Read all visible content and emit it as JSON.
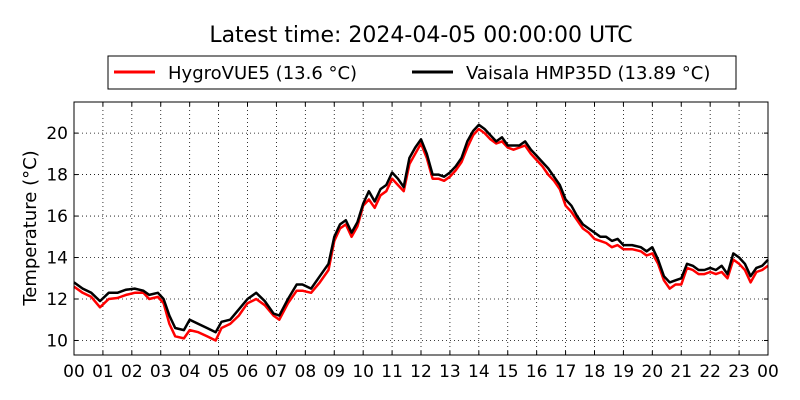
{
  "chart_data": {
    "type": "line",
    "title": "Latest time: 2024-04-05 00:00:00 UTC",
    "xlabel": "",
    "ylabel": "Temperature (°C)",
    "xlim": [
      0,
      24
    ],
    "ylim": [
      9.3,
      21.5
    ],
    "x_ticks": [
      "00",
      "01",
      "02",
      "03",
      "04",
      "05",
      "06",
      "07",
      "08",
      "09",
      "10",
      "11",
      "12",
      "13",
      "14",
      "15",
      "16",
      "17",
      "18",
      "19",
      "20",
      "21",
      "22",
      "23",
      "00"
    ],
    "y_ticks": [
      10,
      12,
      14,
      16,
      18,
      20
    ],
    "grid": true,
    "legend_position": "top",
    "series": [
      {
        "name": "HygroVUE5 (13.6 °C)",
        "color": "#ff0000",
        "points": [
          [
            0,
            12.6
          ],
          [
            0.3,
            12.3
          ],
          [
            0.6,
            12.1
          ],
          [
            0.9,
            11.6
          ],
          [
            1.2,
            12.0
          ],
          [
            1.5,
            12.05
          ],
          [
            1.8,
            12.2
          ],
          [
            2.1,
            12.3
          ],
          [
            2.4,
            12.3
          ],
          [
            2.6,
            12.0
          ],
          [
            2.9,
            12.1
          ],
          [
            3.1,
            11.8
          ],
          [
            3.3,
            10.8
          ],
          [
            3.5,
            10.2
          ],
          [
            3.8,
            10.1
          ],
          [
            4.0,
            10.5
          ],
          [
            4.3,
            10.4
          ],
          [
            4.6,
            10.2
          ],
          [
            4.9,
            10.0
          ],
          [
            5.1,
            10.6
          ],
          [
            5.4,
            10.8
          ],
          [
            5.7,
            11.2
          ],
          [
            6.0,
            11.8
          ],
          [
            6.3,
            12.0
          ],
          [
            6.6,
            11.7
          ],
          [
            6.9,
            11.2
          ],
          [
            7.1,
            11.0
          ],
          [
            7.4,
            11.8
          ],
          [
            7.7,
            12.4
          ],
          [
            7.9,
            12.4
          ],
          [
            8.2,
            12.3
          ],
          [
            8.5,
            12.8
          ],
          [
            8.8,
            13.4
          ],
          [
            9.0,
            14.8
          ],
          [
            9.2,
            15.4
          ],
          [
            9.4,
            15.6
          ],
          [
            9.6,
            15.0
          ],
          [
            9.8,
            15.5
          ],
          [
            10.0,
            16.5
          ],
          [
            10.2,
            16.8
          ],
          [
            10.4,
            16.4
          ],
          [
            10.6,
            17.0
          ],
          [
            10.8,
            17.2
          ],
          [
            11.0,
            17.8
          ],
          [
            11.2,
            17.5
          ],
          [
            11.4,
            17.2
          ],
          [
            11.6,
            18.5
          ],
          [
            11.8,
            19.0
          ],
          [
            12.0,
            19.5
          ],
          [
            12.2,
            18.8
          ],
          [
            12.4,
            17.8
          ],
          [
            12.6,
            17.8
          ],
          [
            12.8,
            17.7
          ],
          [
            13.0,
            17.9
          ],
          [
            13.2,
            18.2
          ],
          [
            13.4,
            18.6
          ],
          [
            13.6,
            19.3
          ],
          [
            13.8,
            19.9
          ],
          [
            14.0,
            20.2
          ],
          [
            14.2,
            20.0
          ],
          [
            14.4,
            19.7
          ],
          [
            14.6,
            19.5
          ],
          [
            14.8,
            19.6
          ],
          [
            15.0,
            19.3
          ],
          [
            15.2,
            19.2
          ],
          [
            15.4,
            19.3
          ],
          [
            15.6,
            19.4
          ],
          [
            15.8,
            19.0
          ],
          [
            16.0,
            18.7
          ],
          [
            16.2,
            18.4
          ],
          [
            16.4,
            18.0
          ],
          [
            16.6,
            17.7
          ],
          [
            16.8,
            17.3
          ],
          [
            17.0,
            16.5
          ],
          [
            17.2,
            16.2
          ],
          [
            17.4,
            15.8
          ],
          [
            17.6,
            15.4
          ],
          [
            17.8,
            15.2
          ],
          [
            18.0,
            14.9
          ],
          [
            18.2,
            14.8
          ],
          [
            18.4,
            14.7
          ],
          [
            18.6,
            14.5
          ],
          [
            18.8,
            14.6
          ],
          [
            19.0,
            14.4
          ],
          [
            19.3,
            14.4
          ],
          [
            19.6,
            14.3
          ],
          [
            19.8,
            14.1
          ],
          [
            20.0,
            14.2
          ],
          [
            20.2,
            13.7
          ],
          [
            20.4,
            12.9
          ],
          [
            20.6,
            12.5
          ],
          [
            20.8,
            12.7
          ],
          [
            21.0,
            12.7
          ],
          [
            21.2,
            13.5
          ],
          [
            21.4,
            13.4
          ],
          [
            21.6,
            13.2
          ],
          [
            21.8,
            13.2
          ],
          [
            22.0,
            13.3
          ],
          [
            22.2,
            13.2
          ],
          [
            22.4,
            13.3
          ],
          [
            22.6,
            13.0
          ],
          [
            22.8,
            13.9
          ],
          [
            23.0,
            13.7
          ],
          [
            23.2,
            13.4
          ],
          [
            23.4,
            12.8
          ],
          [
            23.6,
            13.3
          ],
          [
            23.8,
            13.4
          ],
          [
            24.0,
            13.6
          ]
        ]
      },
      {
        "name": "Vaisala HMP35D (13.89 °C)",
        "color": "#000000",
        "points": [
          [
            0,
            12.8
          ],
          [
            0.3,
            12.5
          ],
          [
            0.6,
            12.3
          ],
          [
            0.9,
            11.9
          ],
          [
            1.2,
            12.3
          ],
          [
            1.5,
            12.3
          ],
          [
            1.8,
            12.45
          ],
          [
            2.1,
            12.5
          ],
          [
            2.4,
            12.4
          ],
          [
            2.6,
            12.2
          ],
          [
            2.9,
            12.3
          ],
          [
            3.1,
            12.0
          ],
          [
            3.3,
            11.2
          ],
          [
            3.5,
            10.6
          ],
          [
            3.8,
            10.5
          ],
          [
            4.0,
            11.0
          ],
          [
            4.3,
            10.8
          ],
          [
            4.6,
            10.6
          ],
          [
            4.9,
            10.4
          ],
          [
            5.1,
            10.9
          ],
          [
            5.4,
            11.0
          ],
          [
            5.7,
            11.5
          ],
          [
            6.0,
            12.0
          ],
          [
            6.3,
            12.3
          ],
          [
            6.6,
            11.9
          ],
          [
            6.9,
            11.3
          ],
          [
            7.1,
            11.2
          ],
          [
            7.4,
            12.0
          ],
          [
            7.7,
            12.7
          ],
          [
            7.9,
            12.7
          ],
          [
            8.2,
            12.5
          ],
          [
            8.5,
            13.1
          ],
          [
            8.8,
            13.7
          ],
          [
            9.0,
            15.0
          ],
          [
            9.2,
            15.6
          ],
          [
            9.4,
            15.8
          ],
          [
            9.6,
            15.2
          ],
          [
            9.8,
            15.7
          ],
          [
            10.0,
            16.6
          ],
          [
            10.2,
            17.2
          ],
          [
            10.4,
            16.7
          ],
          [
            10.6,
            17.3
          ],
          [
            10.8,
            17.5
          ],
          [
            11.0,
            18.1
          ],
          [
            11.2,
            17.8
          ],
          [
            11.4,
            17.4
          ],
          [
            11.6,
            18.8
          ],
          [
            11.8,
            19.3
          ],
          [
            12.0,
            19.7
          ],
          [
            12.2,
            19.0
          ],
          [
            12.4,
            18.0
          ],
          [
            12.6,
            18.0
          ],
          [
            12.8,
            17.9
          ],
          [
            13.0,
            18.1
          ],
          [
            13.2,
            18.4
          ],
          [
            13.4,
            18.8
          ],
          [
            13.6,
            19.6
          ],
          [
            13.8,
            20.1
          ],
          [
            14.0,
            20.4
          ],
          [
            14.2,
            20.2
          ],
          [
            14.4,
            19.9
          ],
          [
            14.6,
            19.6
          ],
          [
            14.8,
            19.8
          ],
          [
            15.0,
            19.4
          ],
          [
            15.2,
            19.4
          ],
          [
            15.4,
            19.4
          ],
          [
            15.6,
            19.6
          ],
          [
            15.8,
            19.2
          ],
          [
            16.0,
            18.9
          ],
          [
            16.2,
            18.6
          ],
          [
            16.4,
            18.3
          ],
          [
            16.6,
            17.9
          ],
          [
            16.8,
            17.5
          ],
          [
            17.0,
            16.8
          ],
          [
            17.2,
            16.5
          ],
          [
            17.4,
            16.0
          ],
          [
            17.6,
            15.6
          ],
          [
            17.8,
            15.4
          ],
          [
            18.0,
            15.2
          ],
          [
            18.2,
            15.0
          ],
          [
            18.4,
            15.0
          ],
          [
            18.6,
            14.8
          ],
          [
            18.8,
            14.9
          ],
          [
            19.0,
            14.6
          ],
          [
            19.3,
            14.6
          ],
          [
            19.6,
            14.5
          ],
          [
            19.8,
            14.3
          ],
          [
            20.0,
            14.5
          ],
          [
            20.2,
            13.9
          ],
          [
            20.4,
            13.1
          ],
          [
            20.6,
            12.8
          ],
          [
            20.8,
            12.9
          ],
          [
            21.0,
            13.0
          ],
          [
            21.2,
            13.7
          ],
          [
            21.4,
            13.6
          ],
          [
            21.6,
            13.4
          ],
          [
            21.8,
            13.4
          ],
          [
            22.0,
            13.5
          ],
          [
            22.2,
            13.4
          ],
          [
            22.4,
            13.6
          ],
          [
            22.6,
            13.2
          ],
          [
            22.8,
            14.2
          ],
          [
            23.0,
            14.0
          ],
          [
            23.2,
            13.7
          ],
          [
            23.4,
            13.1
          ],
          [
            23.6,
            13.5
          ],
          [
            23.8,
            13.6
          ],
          [
            24.0,
            13.89
          ]
        ]
      }
    ]
  }
}
